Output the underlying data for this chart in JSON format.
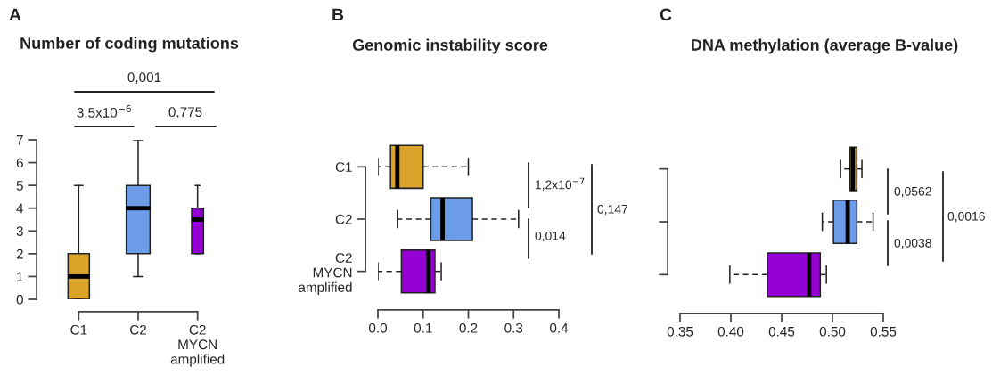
{
  "chart_data": [
    {
      "type": "box",
      "title": "Number of coding mutations",
      "categories": [
        "C1",
        "C2",
        "C2\nMYCN\namplified"
      ],
      "boxes": [
        {
          "low": 0,
          "q1": 0,
          "median": 1,
          "q3": 2,
          "high": 5
        },
        {
          "low": 1,
          "q1": 2,
          "median": 4,
          "q3": 5,
          "high": 7
        },
        {
          "low": 2,
          "q1": 2,
          "median": 3.5,
          "q3": 4,
          "high": 5
        }
      ],
      "colors": [
        "#daa32a",
        "#6b9be9",
        "#9400d3"
      ],
      "line_style": "solid",
      "ylim": [
        0,
        7
      ],
      "yticks": [
        0,
        1,
        2,
        3,
        4,
        5,
        6,
        7
      ],
      "annotations": [
        "A",
        "3,5x10$^{−6}$",
        "0,775",
        "0,001"
      ]
    },
    {
      "type": "box",
      "title": "Genomic instability score",
      "orientation": "horizontal",
      "categories": [
        "C1",
        "C2",
        "C2\nMYCN\namplified"
      ],
      "boxes": [
        {
          "low": 0.0,
          "q1": 0.028,
          "median": 0.043,
          "q3": 0.1,
          "high": 0.2
        },
        {
          "low": 0.043,
          "q1": 0.117,
          "median": 0.143,
          "q3": 0.209,
          "high": 0.311
        },
        {
          "low": 0.0,
          "q1": 0.052,
          "median": 0.112,
          "q3": 0.126,
          "high": 0.14
        }
      ],
      "colors": [
        "#daa32a",
        "#6b9be9",
        "#9400d3"
      ],
      "line_style": "dashed",
      "xlim": [
        0.0,
        0.4
      ],
      "xticks": [
        {
          "value": 0.0,
          "label": "0.0"
        },
        0.1,
        0.2,
        0.3,
        0.4
      ],
      "annotations": [
        "B",
        "1,2x10$^{−7}$",
        "0,014",
        "0,147"
      ]
    },
    {
      "type": "box",
      "title": "DNA methylation (average B-value)",
      "orientation": "horizontal",
      "categories": [
        null,
        null,
        null
      ],
      "tick_labels": "x",
      "boxes": [
        {
          "low": 0.508,
          "q1": 0.517,
          "median": 0.52,
          "q3": 0.524,
          "high": 0.529
        },
        {
          "low": 0.49,
          "q1": 0.501,
          "median": 0.515,
          "q3": 0.524,
          "high": 0.54
        },
        {
          "low": 0.399,
          "q1": 0.436,
          "median": 0.477,
          "q3": 0.488,
          "high": 0.494
        }
      ],
      "colors": [
        "#daa32a",
        "#6b9be9",
        "#9400d3"
      ],
      "line_style": "dashed",
      "xlim": [
        0.35,
        0.55
      ],
      "xticks": [
        0.35,
        {
          "value": 0.4,
          "label": "0.40"
        },
        0.45,
        {
          "value": 0.5,
          "label": "0.50"
        },
        0.55
      ],
      "annotations": [
        "C",
        "0,0562",
        "0,0038",
        "0,0016"
      ]
    }
  ]
}
